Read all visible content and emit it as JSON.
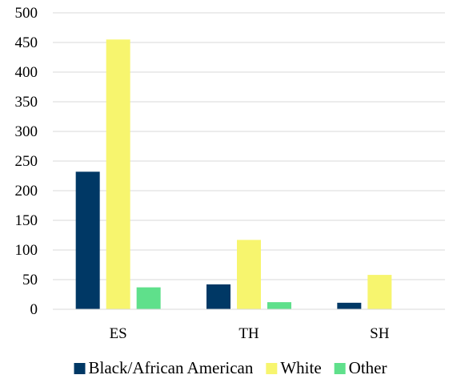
{
  "chart_data": {
    "type": "bar",
    "title": "",
    "xlabel": "",
    "ylabel": "",
    "categories": [
      "ES",
      "TH",
      "SH"
    ],
    "series": [
      {
        "name": "Black/African American",
        "values": [
          232,
          42,
          11
        ],
        "color": "#003865"
      },
      {
        "name": "White",
        "values": [
          455,
          117,
          58
        ],
        "color": "#f7f56e"
      },
      {
        "name": "Other",
        "values": [
          37,
          12,
          0
        ],
        "color": "#5fe08b"
      }
    ],
    "ylim": [
      0,
      500
    ],
    "yticks": [
      0,
      50,
      100,
      150,
      200,
      250,
      300,
      350,
      400,
      450,
      500
    ],
    "grid": true,
    "legend_position": "bottom"
  }
}
